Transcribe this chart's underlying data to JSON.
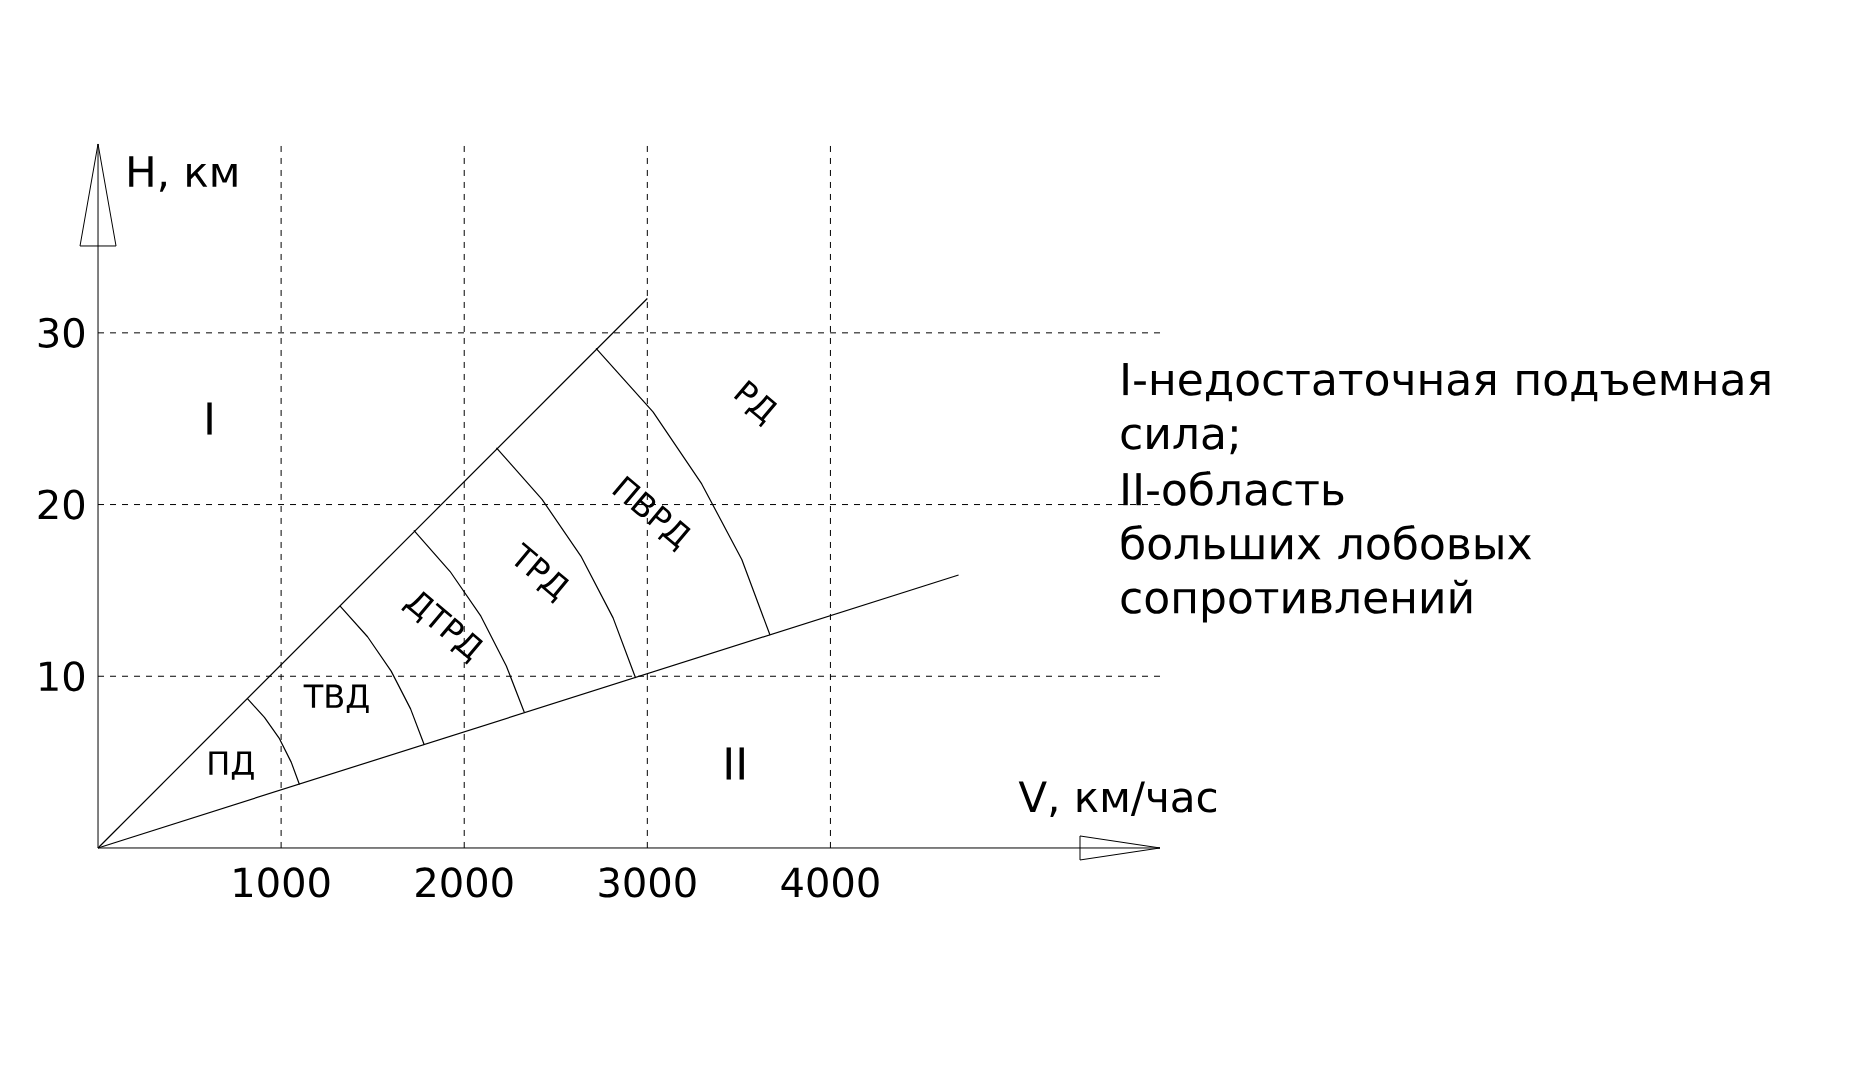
{
  "chart_data": {
    "type": "line",
    "xlabel": "V, км/час",
    "ylabel": "H, км",
    "xlim": [
      0,
      5800
    ],
    "ylim": [
      0,
      41
    ],
    "xticks": [
      1000,
      2000,
      3000,
      4000
    ],
    "yticks": [
      10,
      20,
      30
    ],
    "grid": true,
    "marker": "none",
    "line_style": "solid",
    "series": [
      {
        "color": "#000000",
        "x": [
          0,
          3000
        ],
        "values": [
          0,
          32
        ]
      },
      {
        "color": "#000000",
        "x": [
          0,
          4700
        ],
        "values": [
          0,
          15.9
        ]
      },
      {
        "color": "#000000",
        "x": [
          1100,
          1055,
          989,
          909,
          816
        ],
        "values": [
          3.7,
          5.0,
          6.4,
          7.6,
          8.7
        ]
      },
      {
        "color": "#000000",
        "x": [
          1782,
          1707,
          1601,
          1472,
          1321
        ],
        "values": [
          6.0,
          8.1,
          10.3,
          12.3,
          14.1
        ]
      },
      {
        "color": "#000000",
        "x": [
          2328,
          2230,
          2091,
          1923,
          1725
        ],
        "values": [
          7.9,
          10.6,
          13.5,
          16.1,
          18.5
        ]
      },
      {
        "color": "#000000",
        "x": [
          2936,
          2813,
          2637,
          2425,
          2176
        ],
        "values": [
          9.9,
          13.4,
          17.0,
          20.3,
          23.3
        ]
      },
      {
        "color": "#000000",
        "x": [
          3670,
          3516,
          3297,
          3031,
          2720
        ],
        "values": [
          12.4,
          16.8,
          21.2,
          25.4,
          29.1
        ]
      }
    ],
    "annotations": [
      "I",
      "II",
      "ПД",
      "ТВД",
      "ДТРД",
      "ТРД",
      "ПВРД",
      "РД",
      "I-недостаточная подъемная сила;",
      "II-область больших лобовых сопротивлений"
    ]
  }
}
